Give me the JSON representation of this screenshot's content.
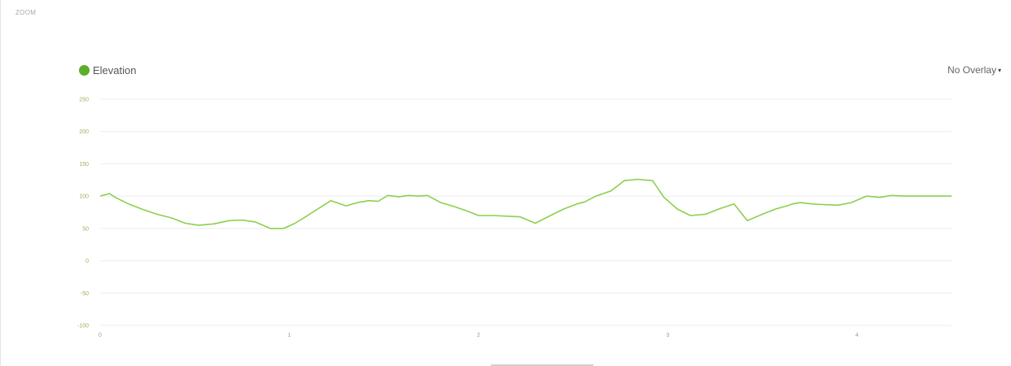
{
  "header": {
    "corner_label": "ZOOM"
  },
  "legend": {
    "label": "Elevation",
    "color": "#5aae2c"
  },
  "overlay": {
    "label": "No Overlay",
    "caret": "▾"
  },
  "colors": {
    "line": "#8ccf4d",
    "grid": "#ececec",
    "ytick": "#9ab35a"
  },
  "chart_data": {
    "type": "line",
    "title": "",
    "xlabel": "",
    "ylabel": "",
    "ylim": [
      -100,
      250
    ],
    "xlim": [
      0,
      4.5
    ],
    "yticks": [
      250,
      200,
      150,
      100,
      50,
      0,
      -50,
      -100
    ],
    "ytick_labels": [
      "250",
      "200",
      "150",
      "100",
      "50",
      "0",
      "-50",
      "-100"
    ],
    "xticks": [
      0,
      1,
      2,
      3,
      4
    ],
    "xtick_labels": [
      "0",
      "1",
      "2",
      "3",
      "4"
    ],
    "grid": true,
    "legend_position": "top-left",
    "series": [
      {
        "name": "Elevation",
        "x": [
          0,
          0.05,
          0.08,
          0.15,
          0.22,
          0.3,
          0.38,
          0.45,
          0.52,
          0.6,
          0.68,
          0.75,
          0.82,
          0.9,
          0.97,
          1.03,
          1.08,
          1.15,
          1.22,
          1.3,
          1.36,
          1.42,
          1.47,
          1.52,
          1.58,
          1.63,
          1.68,
          1.73,
          1.8,
          1.86,
          1.93,
          2.0,
          2.08,
          2.15,
          2.22,
          2.3,
          2.38,
          2.45,
          2.52,
          2.56,
          2.62,
          2.7,
          2.77,
          2.84,
          2.92,
          2.98,
          3.05,
          3.12,
          3.2,
          3.27,
          3.35,
          3.42,
          3.5,
          3.57,
          3.63,
          3.66,
          3.7,
          3.76,
          3.82,
          3.9,
          3.97,
          4.05,
          4.12,
          4.18,
          4.25,
          4.32,
          4.4,
          4.5
        ],
        "values": [
          100,
          104,
          98,
          88,
          80,
          72,
          66,
          58,
          55,
          57,
          62,
          63,
          60,
          50,
          50,
          58,
          67,
          80,
          93,
          85,
          90,
          93,
          92,
          101,
          99,
          101,
          100,
          101,
          90,
          85,
          78,
          70,
          70,
          69,
          68,
          58,
          70,
          80,
          88,
          91,
          100,
          108,
          124,
          126,
          124,
          98,
          80,
          70,
          72,
          80,
          88,
          62,
          72,
          80,
          85,
          88,
          90,
          88,
          87,
          86,
          90,
          100,
          98,
          101,
          100,
          100,
          100,
          100
        ]
      }
    ]
  }
}
